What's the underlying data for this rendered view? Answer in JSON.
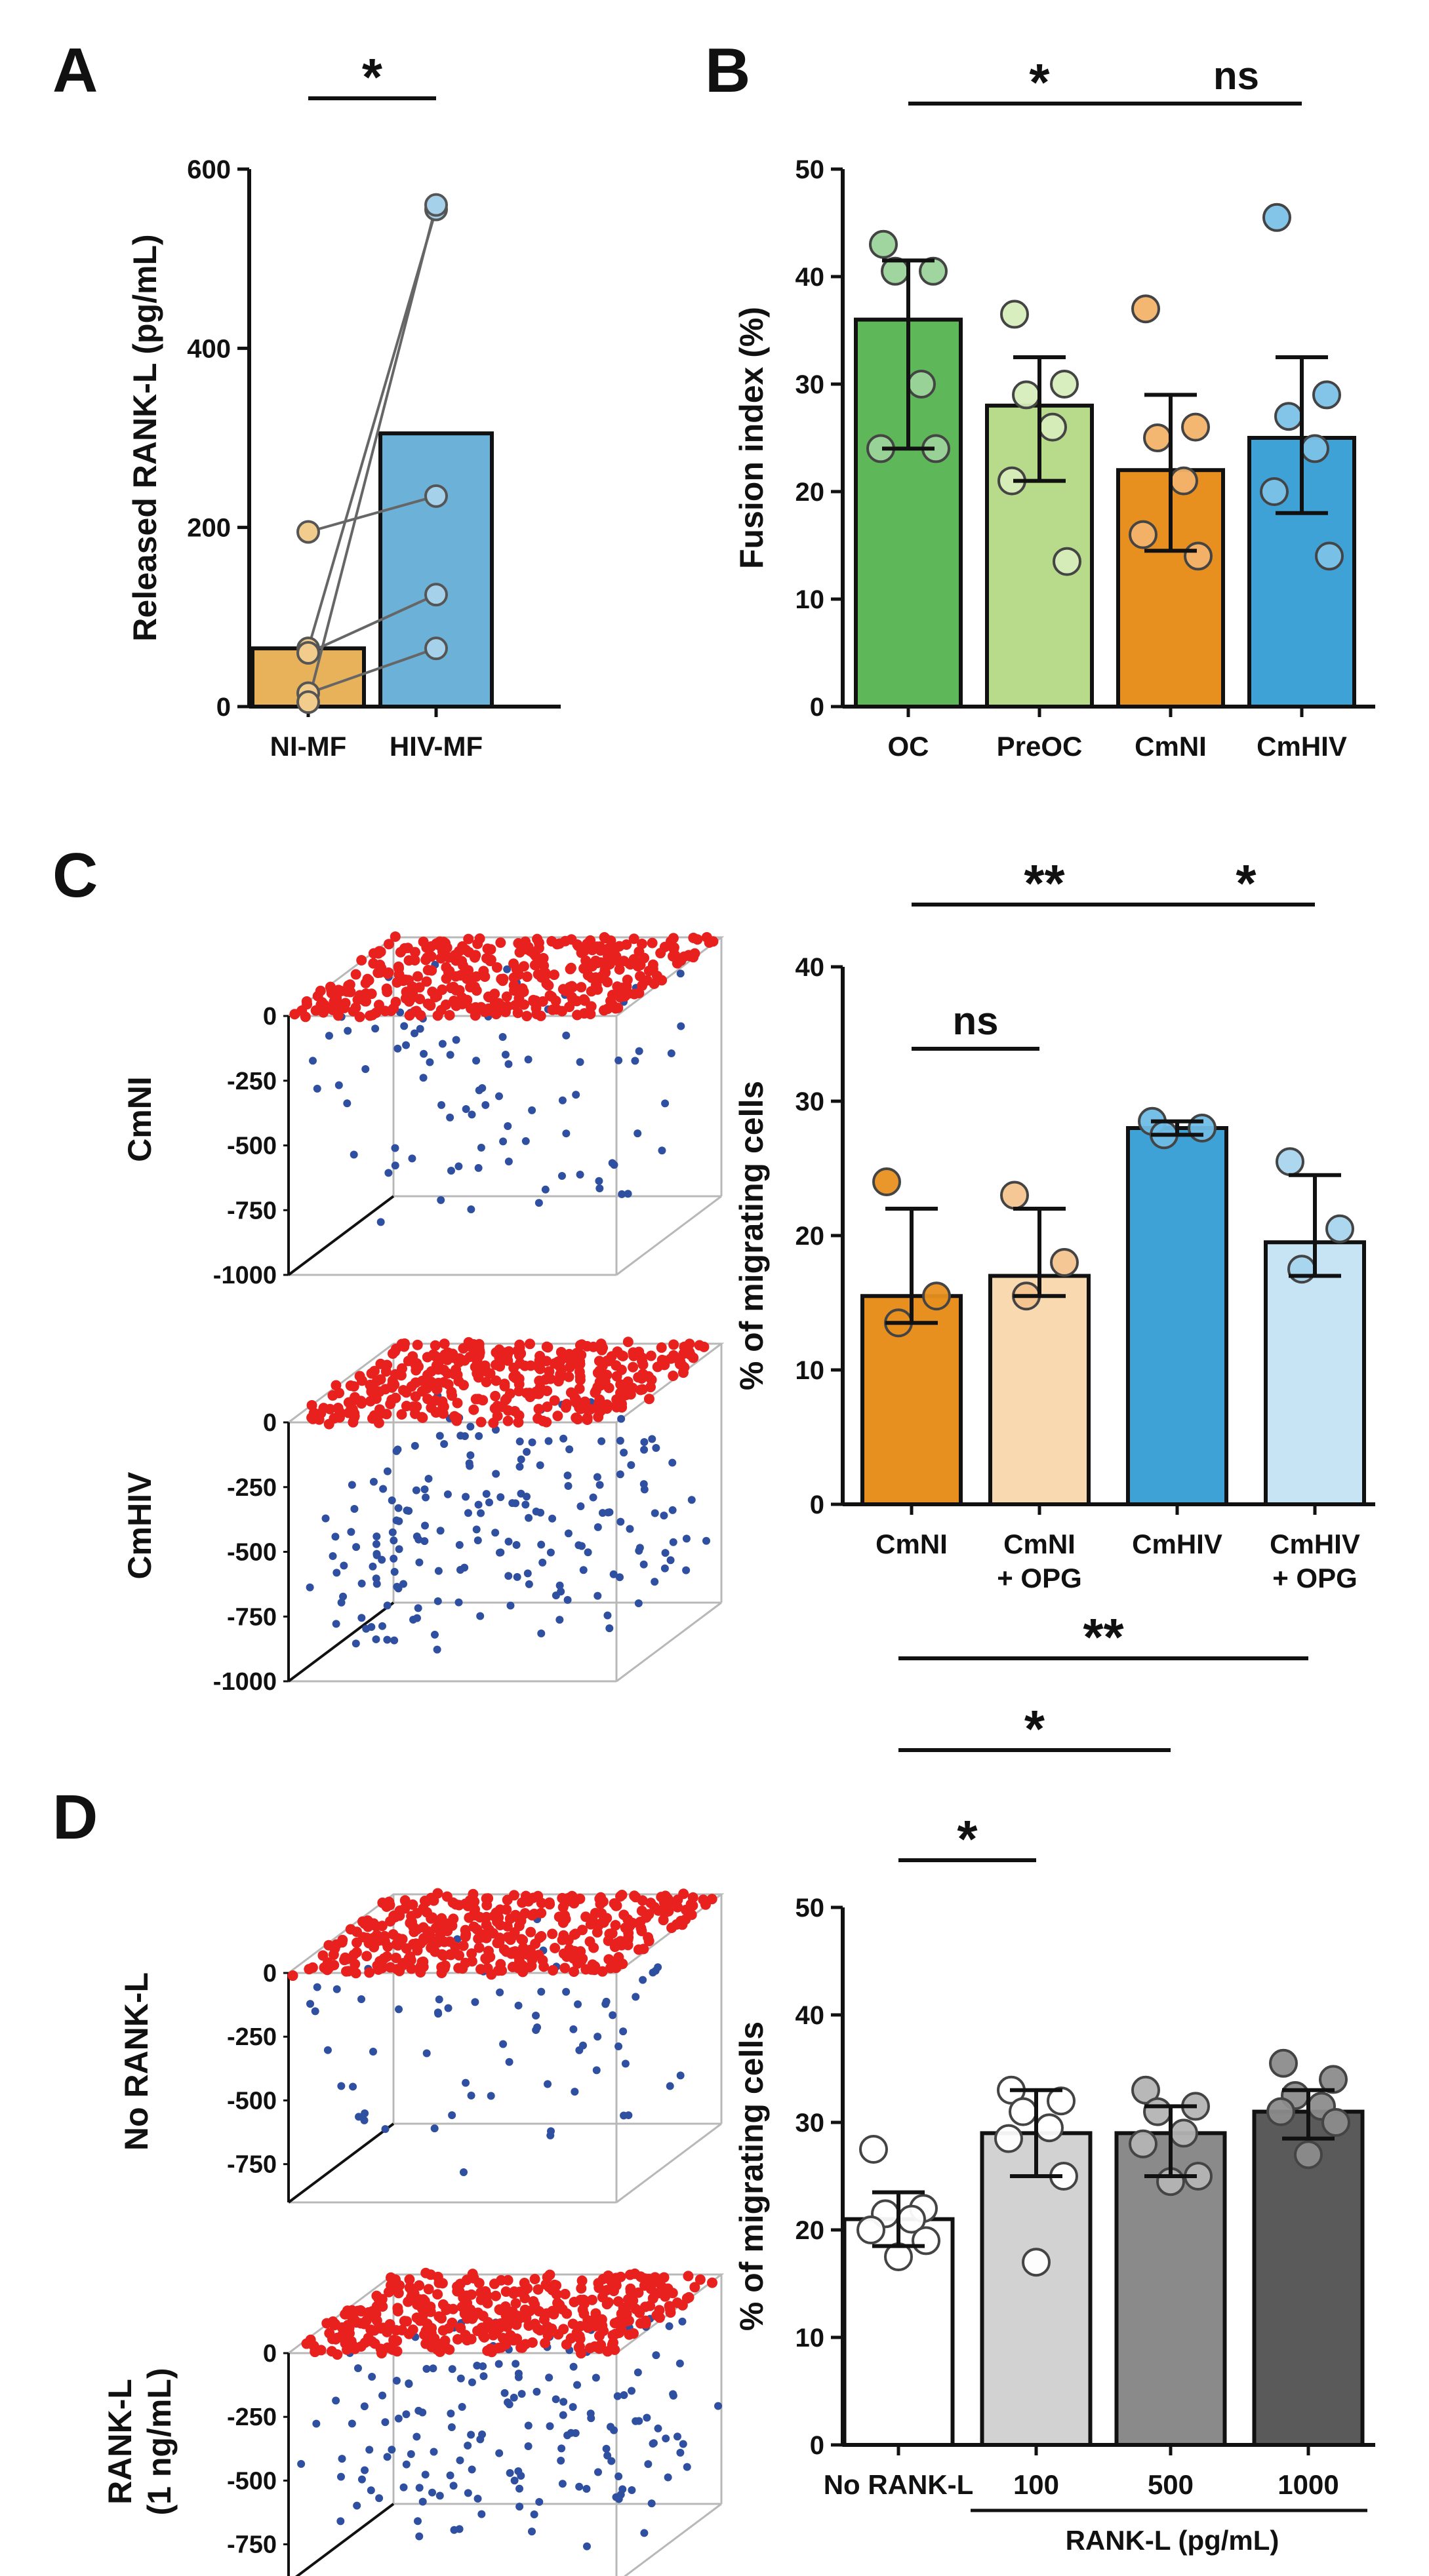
{
  "panel_labels": [
    "A",
    "B",
    "C",
    "D"
  ],
  "chart_data": [
    {
      "id": "A",
      "type": "bar",
      "categories": [
        "NI-MF",
        "HIV-MF"
      ],
      "values": [
        65,
        305
      ],
      "colors": [
        "#E8B25A",
        "#6CB1D8"
      ],
      "point_colors": [
        "#F2CC8C",
        "#A6D1EA"
      ],
      "paired_points": [
        [
          195,
          235
        ],
        [
          65,
          555
        ],
        [
          60,
          125
        ],
        [
          15,
          65
        ],
        [
          5,
          560
        ]
      ],
      "ylabel": "Released RANK-L (pg/mL)",
      "ylim": [
        0,
        600
      ],
      "yticks": [
        0,
        200,
        400,
        600
      ],
      "significance": [
        {
          "from": 0,
          "to": 1,
          "label": "*"
        }
      ]
    },
    {
      "id": "B",
      "type": "bar",
      "categories": [
        "OC",
        "PreOC",
        "CmNI",
        "CmHIV"
      ],
      "values": [
        36,
        28,
        22,
        25
      ],
      "error_low": [
        24,
        21,
        14.5,
        18
      ],
      "error_high": [
        41.5,
        32.5,
        29,
        32.5
      ],
      "colors": [
        "#5EB85A",
        "#B8DB8B",
        "#E8901F",
        "#3FA2D6"
      ],
      "point_colors": [
        "#9CD39A",
        "#D7EDBA",
        "#F2B36A",
        "#7CC2E8"
      ],
      "points": [
        [
          43,
          40.5,
          40.5,
          30,
          24,
          24
        ],
        [
          36.5,
          30,
          29,
          26,
          21,
          13.5
        ],
        [
          37,
          26,
          25,
          21,
          16,
          14
        ],
        [
          45.5,
          29,
          27,
          24,
          20,
          14
        ]
      ],
      "ylabel": "Fusion index (%)",
      "ylim": [
        0,
        50
      ],
      "yticks": [
        0,
        10,
        20,
        30,
        40,
        50
      ],
      "significance": [
        {
          "from": 0,
          "to": 2,
          "label": "*"
        },
        {
          "from": 2,
          "to": 3,
          "label": "ns"
        }
      ]
    },
    {
      "id": "C",
      "type": "bar",
      "categories": [
        "CmNI",
        "CmNI\n+ OPG",
        "CmHIV",
        "CmHIV\n+ OPG"
      ],
      "values": [
        15.5,
        17,
        28,
        19.5
      ],
      "error_low": [
        13.5,
        15.5,
        27.5,
        17
      ],
      "error_high": [
        22,
        22,
        28.5,
        24.5
      ],
      "colors": [
        "#E8901F",
        "#F8D9B0",
        "#3FA2D6",
        "#C6E4F4"
      ],
      "point_colors": [
        "#E8901F",
        "#F4C48F",
        "#6FBDE6",
        "#A8D5EE"
      ],
      "points": [
        [
          24,
          15.5,
          13.5
        ],
        [
          23,
          18,
          15.5
        ],
        [
          28.5,
          28,
          27.5
        ],
        [
          25.5,
          20.5,
          17.5
        ]
      ],
      "ylabel": "% of migrating cells",
      "ylim": [
        0,
        40
      ],
      "yticks": [
        0,
        10,
        20,
        30,
        40
      ],
      "significance": [
        {
          "from": 0,
          "to": 2,
          "label": "**"
        },
        {
          "from": 0,
          "to": 1,
          "label": "ns"
        },
        {
          "from": 2,
          "to": 3,
          "label": "*"
        }
      ]
    },
    {
      "id": "D",
      "type": "bar",
      "categories": [
        "No RANK-L",
        "100",
        "500",
        "1000"
      ],
      "group_label": "RANK-L (pg/mL)",
      "values": [
        21,
        29,
        29,
        31
      ],
      "error_low": [
        18.5,
        25,
        25,
        28.5
      ],
      "error_high": [
        23.5,
        33,
        31.5,
        33
      ],
      "colors": [
        "#FFFFFF",
        "#D2D2D2",
        "#8A8A8A",
        "#5A5A5A"
      ],
      "point_colors": [
        "#FFFFFF",
        "#FFFFFF",
        "#B4B4B4",
        "#8C8C8C"
      ],
      "points": [
        [
          27.5,
          22,
          21.5,
          21,
          20,
          19,
          17.5
        ],
        [
          33,
          32,
          31,
          29.5,
          28.5,
          25,
          17
        ],
        [
          33,
          31.5,
          31,
          29,
          28,
          25,
          24.5
        ],
        [
          35.5,
          34,
          32.5,
          31.5,
          31,
          30,
          27
        ]
      ],
      "ylabel": "% of migrating cells",
      "ylim": [
        0,
        50
      ],
      "yticks": [
        0,
        10,
        20,
        30,
        40,
        50
      ],
      "significance": [
        {
          "from": 0,
          "to": 1,
          "label": "*"
        },
        {
          "from": 0,
          "to": 2,
          "label": "*"
        },
        {
          "from": 0,
          "to": 3,
          "label": "**"
        }
      ]
    }
  ],
  "scatter_3d": [
    {
      "panel": "C",
      "condition": "CmNI",
      "zticks": [
        "0",
        "-250",
        "-500",
        "-750",
        "-1000"
      ],
      "top_dots": 380,
      "migrated_dots": 90
    },
    {
      "panel": "C",
      "condition": "CmHIV",
      "zticks": [
        "0",
        "-250",
        "-500",
        "-750",
        "-1000"
      ],
      "top_dots": 380,
      "migrated_dots": 190
    },
    {
      "panel": "D",
      "condition": "No RANK-L",
      "zticks": [
        "0",
        "-250",
        "-500",
        "-750"
      ],
      "top_dots": 380,
      "migrated_dots": 70
    },
    {
      "panel": "D",
      "condition": "RANK-L\n(1 ng/mL)",
      "zticks": [
        "0",
        "-250",
        "-500",
        "-750"
      ],
      "top_dots": 380,
      "migrated_dots": 160
    }
  ],
  "colors": {
    "top_cells": "#E8211F",
    "migrated_cells": "#2F4FA0",
    "axis": "#111111",
    "grid": "#B8B8B8"
  }
}
